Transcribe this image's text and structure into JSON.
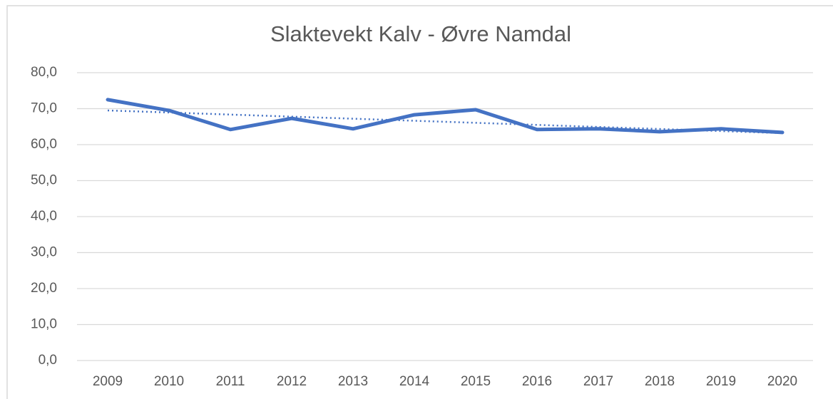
{
  "chart_data": {
    "type": "line",
    "title": "Slaktevekt Kalv - Øvre Namdal",
    "categories": [
      "2009",
      "2010",
      "2011",
      "2012",
      "2013",
      "2014",
      "2015",
      "2016",
      "2017",
      "2018",
      "2019",
      "2020"
    ],
    "series": [
      {
        "color": "#4472c4",
        "values": [
          72.5,
          69.5,
          64.2,
          67.3,
          64.4,
          68.3,
          69.7,
          64.2,
          64.4,
          63.6,
          64.4,
          63.4
        ]
      }
    ],
    "trendline": {
      "color": "#4472c4",
      "style": "dotted",
      "values": [
        69.5,
        63.2
      ]
    },
    "ylim": [
      0,
      80
    ],
    "yticks": [
      {
        "value": 0,
        "label": "0,0"
      },
      {
        "value": 10,
        "label": "10,0"
      },
      {
        "value": 20,
        "label": "20,0"
      },
      {
        "value": 30,
        "label": "30,0"
      },
      {
        "value": 40,
        "label": "40,0"
      },
      {
        "value": 50,
        "label": "50,0"
      },
      {
        "value": 60,
        "label": "60,0"
      },
      {
        "value": 70,
        "label": "70,0"
      },
      {
        "value": 80,
        "label": "80,0"
      }
    ],
    "grid": true
  }
}
